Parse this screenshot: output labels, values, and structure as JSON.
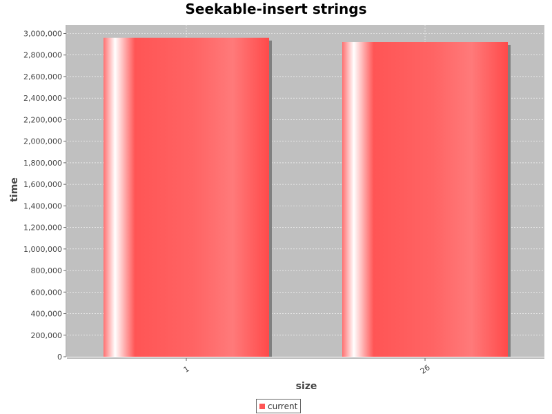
{
  "chart_data": {
    "type": "bar",
    "title": "Seekable-insert strings",
    "xlabel": "size",
    "ylabel": "time",
    "categories": [
      "1",
      "26"
    ],
    "series": [
      {
        "name": "current",
        "values": [
          2960000,
          2920000
        ]
      }
    ],
    "ylim": [
      0,
      3080000
    ],
    "yticks": [
      0,
      200000,
      400000,
      600000,
      800000,
      1000000,
      1200000,
      1400000,
      1600000,
      1800000,
      2000000,
      2200000,
      2400000,
      2600000,
      2800000,
      3000000
    ],
    "ytick_labels": [
      "0",
      "200,000",
      "400,000",
      "600,000",
      "800,000",
      "1,000,000",
      "1,200,000",
      "1,400,000",
      "1,600,000",
      "1,800,000",
      "2,000,000",
      "2,200,000",
      "2,400,000",
      "2,600,000",
      "2,800,000",
      "3,000,000"
    ],
    "grid": true,
    "legend": "bottom-center",
    "colors": {
      "bar": "#ff5555",
      "plot_background": "#c0c0c0",
      "gridline": "#ffffff",
      "shadow": "#808080"
    }
  }
}
